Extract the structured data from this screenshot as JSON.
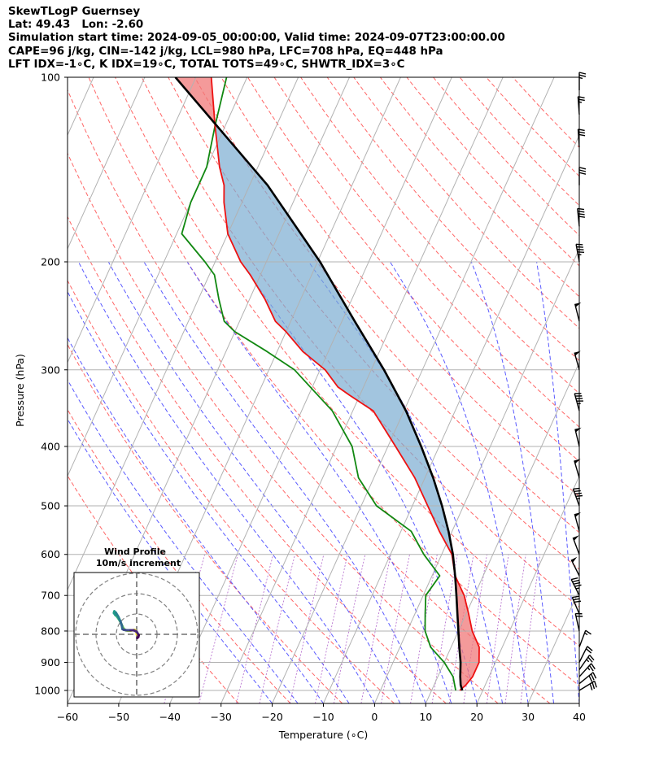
{
  "header": {
    "line1": "SkewTLogP Guernsey",
    "line2": "Lat: 49.43   Lon: -2.60",
    "line3": "Simulation start time: 2024-09-05_00:00:00, Valid time: 2024-09-07T23:00:00.00",
    "line4": "CAPE=96 j/kg, CIN=-142 j/kg, LCL=980 hPa, LFC=708 hPa, EQ=448 hPa",
    "line5": "LFT IDX=-1∘C, K IDX=19∘C, TOTAL TOTS=49∘C, SHWTR_IDX=3∘C"
  },
  "chart_data": {
    "type": "line",
    "xlabel": "Temperature (∘C)",
    "ylabel": "Pressure (hPa)",
    "xlim": [
      -60,
      40
    ],
    "ylim_hpa": [
      1050,
      100
    ],
    "y_scale": "log",
    "skew": true,
    "grid": true,
    "x_ticks": [
      -60,
      -50,
      -40,
      -30,
      -20,
      -10,
      0,
      10,
      20,
      30,
      40
    ],
    "y_ticks": [
      1000,
      900,
      800,
      700,
      600,
      500,
      400,
      300,
      200,
      100
    ],
    "series": [
      {
        "role": "temperature",
        "color": "#ee1111",
        "points": [
          [
            1000,
            15.5
          ],
          [
            980,
            16.2
          ],
          [
            950,
            16.8
          ],
          [
            900,
            16.8
          ],
          [
            850,
            15.5
          ],
          [
            800,
            12.7
          ],
          [
            750,
            10.5
          ],
          [
            700,
            8
          ],
          [
            650,
            4.5
          ],
          [
            600,
            2
          ],
          [
            550,
            -2.5
          ],
          [
            500,
            -7
          ],
          [
            450,
            -12
          ],
          [
            400,
            -18.5
          ],
          [
            350,
            -26
          ],
          [
            330,
            -32
          ],
          [
            320,
            -35
          ],
          [
            300,
            -39
          ],
          [
            280,
            -45
          ],
          [
            260,
            -50
          ],
          [
            250,
            -53
          ],
          [
            230,
            -57
          ],
          [
            210,
            -62
          ],
          [
            200,
            -65
          ],
          [
            180,
            -70
          ],
          [
            160,
            -73.5
          ],
          [
            150,
            -75
          ],
          [
            140,
            -77.5
          ],
          [
            120,
            -82
          ],
          [
            100,
            -87
          ]
        ]
      },
      {
        "role": "dewpoint",
        "color": "#118811",
        "points": [
          [
            1000,
            14.7
          ],
          [
            950,
            13
          ],
          [
            900,
            10
          ],
          [
            850,
            6
          ],
          [
            800,
            3.5
          ],
          [
            750,
            2
          ],
          [
            700,
            0.5
          ],
          [
            650,
            1.5
          ],
          [
            600,
            -3.5
          ],
          [
            550,
            -8
          ],
          [
            500,
            -17
          ],
          [
            450,
            -23
          ],
          [
            400,
            -27
          ],
          [
            350,
            -34
          ],
          [
            300,
            -45
          ],
          [
            280,
            -52
          ],
          [
            260,
            -60
          ],
          [
            250,
            -63
          ],
          [
            230,
            -66
          ],
          [
            210,
            -69
          ],
          [
            200,
            -72
          ],
          [
            180,
            -79
          ],
          [
            160,
            -80
          ],
          [
            150,
            -80
          ],
          [
            140,
            -80
          ],
          [
            120,
            -82
          ],
          [
            100,
            -84
          ]
        ]
      },
      {
        "role": "parcel",
        "color": "#000000",
        "points": [
          [
            1000,
            16
          ],
          [
            980,
            15.2
          ],
          [
            950,
            14.4
          ],
          [
            900,
            13.2
          ],
          [
            850,
            11.6
          ],
          [
            800,
            10
          ],
          [
            750,
            8.3
          ],
          [
            700,
            6.5
          ],
          [
            650,
            4.5
          ],
          [
            600,
            2.2
          ],
          [
            550,
            -0.7
          ],
          [
            500,
            -4.2
          ],
          [
            450,
            -8.4
          ],
          [
            400,
            -13.5
          ],
          [
            350,
            -19.6
          ],
          [
            300,
            -27.5
          ],
          [
            250,
            -37.5
          ],
          [
            200,
            -49.5
          ],
          [
            150,
            -66.5
          ],
          [
            100,
            -94
          ]
        ]
      }
    ],
    "shading": [
      {
        "type": "CAPE",
        "color": "#7bacd1"
      },
      {
        "type": "CIN",
        "color": "#f07878"
      }
    ],
    "wind_barbs": [
      {
        "p": 1000,
        "u": -13,
        "v": -8
      },
      {
        "p": 975,
        "u": -11,
        "v": -9
      },
      {
        "p": 950,
        "u": -9,
        "v": -10
      },
      {
        "p": 925,
        "u": -7,
        "v": -10
      },
      {
        "p": 900,
        "u": -5,
        "v": -10
      },
      {
        "p": 850,
        "u": -3,
        "v": -8
      },
      {
        "p": 800,
        "u": 2,
        "v": -9
      },
      {
        "p": 750,
        "u": 6,
        "v": -14
      },
      {
        "p": 700,
        "u": 10,
        "v": -20
      },
      {
        "p": 650,
        "u": 11,
        "v": -22
      },
      {
        "p": 600,
        "u": 9,
        "v": -24
      },
      {
        "p": 550,
        "u": 7,
        "v": -26
      },
      {
        "p": 500,
        "u": 8,
        "v": -22
      },
      {
        "p": 450,
        "u": 7,
        "v": -24
      },
      {
        "p": 400,
        "u": 6,
        "v": -25
      },
      {
        "p": 350,
        "u": 6,
        "v": -22
      },
      {
        "p": 300,
        "u": 7,
        "v": -25
      },
      {
        "p": 250,
        "u": 6,
        "v": -24
      },
      {
        "p": 200,
        "u": 4,
        "v": -22
      },
      {
        "p": 175,
        "u": 2,
        "v": -20
      },
      {
        "p": 150,
        "u": 0,
        "v": -16
      },
      {
        "p": 130,
        "u": 1,
        "v": -15
      },
      {
        "p": 115,
        "u": 1,
        "v": -14
      },
      {
        "p": 105,
        "u": 0,
        "v": -13
      }
    ],
    "hodograph": {
      "title": "Wind Profile",
      "subtitle": "10m/s increment",
      "ring_increment_ms": 10,
      "rings": 3,
      "points": [
        [
          0,
          0
        ],
        [
          -0.2,
          -1.5
        ],
        [
          -1,
          -2.2
        ],
        [
          -3,
          -1.8
        ],
        [
          -4.5,
          -1.8
        ],
        [
          -5.5,
          -2
        ],
        [
          -6.5,
          -3
        ],
        [
          -7.5,
          -5
        ],
        [
          -8.5,
          -7
        ],
        [
          -9.5,
          -8.5
        ],
        [
          -10.5,
          -9.5
        ],
        [
          -11.2,
          -10.5
        ],
        [
          -11,
          -11.3
        ],
        [
          -10.2,
          -10.6
        ],
        [
          -9,
          -8.6
        ],
        [
          -8,
          -6.4
        ],
        [
          -7.3,
          -4.3
        ],
        [
          -7,
          -2.6
        ],
        [
          -6.5,
          -2.3
        ],
        [
          -5,
          -2
        ],
        [
          -3,
          -2
        ],
        [
          -1.5,
          -2
        ],
        [
          0,
          -1.3
        ],
        [
          1,
          0.4
        ],
        [
          0.8,
          1.3
        ],
        [
          0.3,
          1.8
        ]
      ]
    }
  }
}
